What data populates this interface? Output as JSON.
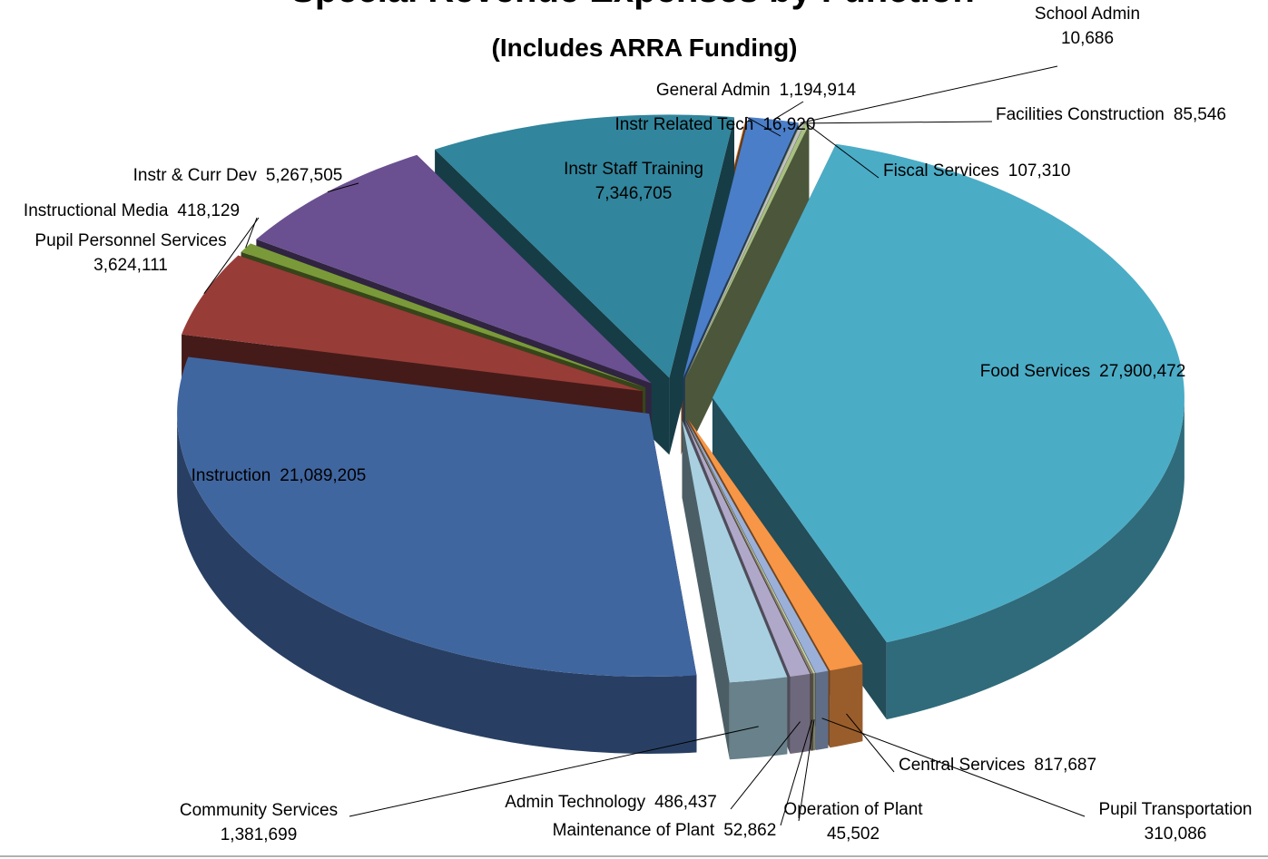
{
  "chart_data": {
    "type": "pie",
    "title": "Special Revenue Expenses by Function",
    "subtitle": "(Includes ARRA Funding)",
    "categories": [
      "General Admin",
      "School Admin",
      "Facilities Construction",
      "Fiscal Services",
      "Food Services",
      "Central Services",
      "Pupil Transportation",
      "Operation of Plant",
      "Maintenance of Plant",
      "Admin Technology",
      "Community Services",
      "Instruction",
      "Pupil Personnel Services",
      "Instructional Media",
      "Instr & Curr Dev",
      "Instr Staff Training",
      "Instr Related Tech"
    ],
    "values": [
      1194914,
      10686,
      85546,
      107310,
      27900472,
      817687,
      310086,
      45502,
      52862,
      486437,
      1381699,
      21089205,
      3624111,
      418129,
      5267505,
      7346705,
      16920
    ],
    "value_labels": [
      "1,194,914",
      "10,686",
      "85,546",
      "107,310",
      "27,900,472",
      "817,687",
      "310,086",
      "45,502",
      "52,862",
      "486,437",
      "1,381,699",
      "21,089,205",
      "3,624,111",
      "418,129",
      "5,267,505",
      "7,346,705",
      "16,920"
    ],
    "colors": [
      "#4a7ec8",
      "#7a9a3a",
      "#c0c0c0",
      "#a8c080",
      "#4bacc6",
      "#f79646",
      "#9bb0d8",
      "#c8d0a0",
      "#8a8070",
      "#b0a8c8",
      "#a8d0e0",
      "#4066a0",
      "#983c38",
      "#7a9a3a",
      "#6a5090",
      "#31859c",
      "#e08030"
    ]
  }
}
